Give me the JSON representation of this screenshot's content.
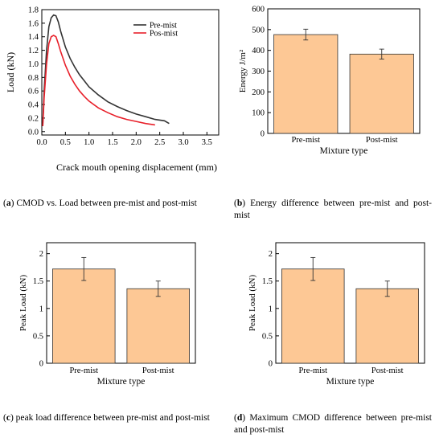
{
  "chart_data": [
    {
      "id": "a",
      "type": "line",
      "xlabel": "Crack mouth opening displacement (mm)",
      "ylabel": "Load (kN)",
      "xlim": [
        0,
        3.75
      ],
      "ylim": [
        -0.05,
        1.8
      ],
      "xticks": [
        "0.0",
        "0.5",
        "1.0",
        "1.5",
        "2.0",
        "2.5",
        "3.0",
        "3.5"
      ],
      "yticks": [
        "0.0",
        "0.2",
        "0.4",
        "0.6",
        "0.8",
        "1.0",
        "1.2",
        "1.4",
        "1.6",
        "1.8"
      ],
      "legend_position": "top-right",
      "series": [
        {
          "name": "Pre-mist",
          "color": "#333333",
          "x": [
            0.02,
            0.05,
            0.1,
            0.15,
            0.2,
            0.25,
            0.3,
            0.35,
            0.4,
            0.5,
            0.6,
            0.7,
            0.8,
            0.9,
            1.0,
            1.2,
            1.4,
            1.6,
            1.8,
            2.0,
            2.2,
            2.4,
            2.6,
            2.7
          ],
          "y": [
            0.1,
            0.6,
            1.2,
            1.55,
            1.68,
            1.72,
            1.71,
            1.62,
            1.48,
            1.25,
            1.08,
            0.95,
            0.84,
            0.75,
            0.66,
            0.54,
            0.44,
            0.37,
            0.31,
            0.26,
            0.22,
            0.18,
            0.16,
            0.12
          ]
        },
        {
          "name": "Pos-mist",
          "color": "#e8202a",
          "x": [
            0.02,
            0.05,
            0.1,
            0.15,
            0.2,
            0.25,
            0.3,
            0.35,
            0.4,
            0.5,
            0.6,
            0.7,
            0.8,
            0.9,
            1.0,
            1.2,
            1.4,
            1.6,
            1.8,
            2.0,
            2.2,
            2.4
          ],
          "y": [
            0.08,
            0.5,
            1.0,
            1.3,
            1.4,
            1.42,
            1.4,
            1.3,
            1.18,
            0.98,
            0.82,
            0.7,
            0.6,
            0.52,
            0.45,
            0.35,
            0.28,
            0.22,
            0.18,
            0.15,
            0.12,
            0.1
          ]
        }
      ]
    },
    {
      "id": "b",
      "type": "bar",
      "xlabel": "Mixture   type",
      "ylabel": "Energy J/m²",
      "categories": [
        "Pre-mist",
        "Post-mist"
      ],
      "values": [
        476,
        382
      ],
      "errors": [
        26,
        24
      ],
      "ylim": [
        0,
        600
      ],
      "yticks": [
        "0",
        "100",
        "200",
        "300",
        "400",
        "500",
        "600"
      ],
      "color": "#fdc895"
    },
    {
      "id": "c",
      "type": "bar",
      "xlabel": "Mixture   type",
      "ylabel": "Peak Load (kN)",
      "categories": [
        "Pre-mist",
        "Post-mist"
      ],
      "values": [
        1.72,
        1.36
      ],
      "errors": [
        0.21,
        0.14
      ],
      "ylim": [
        0,
        2.2
      ],
      "yticks": [
        "0",
        "0.5",
        "1",
        "1.5",
        "2"
      ],
      "color": "#fdc895"
    },
    {
      "id": "d",
      "type": "bar",
      "xlabel": "Mixture   type",
      "ylabel": "Peak Load (kN)",
      "categories": [
        "Pre-mist",
        "Post-mist"
      ],
      "values": [
        1.72,
        1.36
      ],
      "errors": [
        0.21,
        0.14
      ],
      "ylim": [
        0,
        2.2
      ],
      "yticks": [
        "0",
        "0.5",
        "1",
        "1.5",
        "2"
      ],
      "color": "#fdc895"
    }
  ],
  "captions": {
    "a": {
      "letter": "a",
      "text": " CMOD vs. Load between pre-mist and post-mist"
    },
    "b": {
      "letter": "b",
      "text": " Energy difference between pre-mist and post-mist"
    },
    "c": {
      "letter": "c",
      "text": " peak load difference between pre-mist and post-mist"
    },
    "d": {
      "letter": "d",
      "text": " Maximum CMOD difference between pre-mist and post-mist"
    }
  }
}
